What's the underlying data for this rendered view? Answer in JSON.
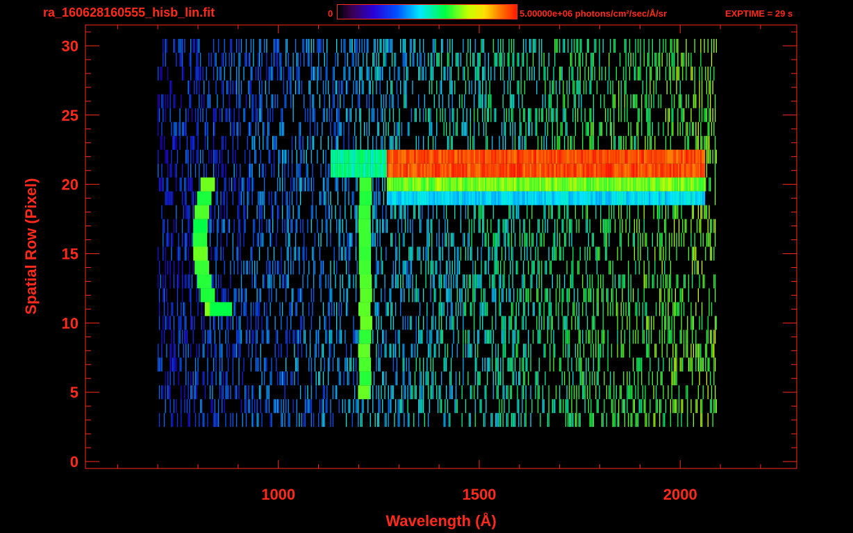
{
  "header": {
    "file_title": "ra_160628160555_hisb_lin.fit",
    "colorbar_min": "0",
    "colorbar_max": "5.00000e+06 photons/cm²/sec/Å/sr",
    "exptime": "EXPTIME = 29 s"
  },
  "colors": {
    "axis": "#ff2a1a",
    "background": "#000000"
  },
  "chart_data": {
    "type": "heatmap",
    "title": "",
    "xlabel": "Wavelength (Å)",
    "ylabel": "Spatial Row (Pixel)",
    "xlim": [
      520,
      2290
    ],
    "ylim": [
      -0.5,
      31.5
    ],
    "x_ticks": [
      1000,
      1500,
      2000
    ],
    "y_ticks": [
      0,
      5,
      10,
      15,
      20,
      25,
      30
    ],
    "colorscale": "rainbow",
    "colorbar_range": [
      0,
      5000000
    ],
    "colorbar_units": "photons/cm²/sec/Å/sr",
    "data_extent_x": [
      700,
      2090
    ],
    "features": [
      {
        "name": "Lyman-alpha",
        "wavelength": 1216,
        "rows": [
          5,
          21
        ],
        "intensity": 0.6
      },
      {
        "name": "band",
        "wavelength_range": [
          1130,
          1270
        ],
        "rows": [
          21,
          23
        ],
        "intensity": 0.55
      },
      {
        "name": "band",
        "wavelength_range": [
          1270,
          2060
        ],
        "rows": [
          21,
          23
        ],
        "intensity": 1.0
      },
      {
        "name": "band",
        "wavelength_range": [
          1270,
          2060
        ],
        "rows": [
          20,
          21
        ],
        "intensity": 0.7
      },
      {
        "name": "band",
        "wavelength_range": [
          1270,
          2060
        ],
        "rows": [
          19,
          20
        ],
        "intensity": 0.45
      },
      {
        "name": "arc",
        "wavelength_range": [
          790,
          880
        ],
        "rows": [
          11,
          21
        ],
        "intensity": 0.6
      }
    ],
    "grid": false,
    "legend": "none"
  }
}
